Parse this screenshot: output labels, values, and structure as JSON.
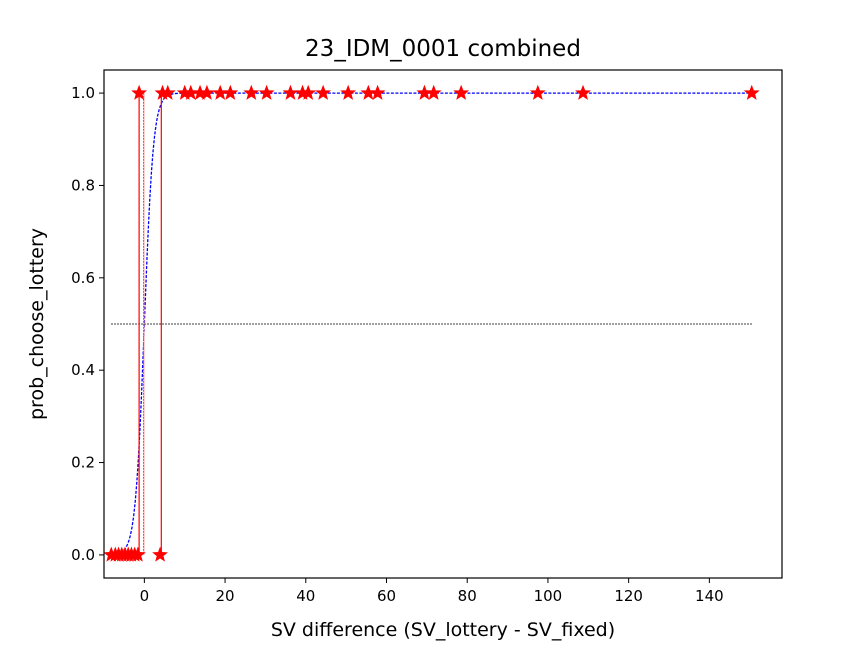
{
  "chart_data": {
    "type": "scatter",
    "title": "23_IDM_0001 combined",
    "xlabel": "SV difference (SV_lottery - SV_fixed)",
    "ylabel": "prob_choose_lottery",
    "xlim": [
      -10,
      158
    ],
    "ylim": [
      -0.05,
      1.05
    ],
    "xticks": [
      0,
      20,
      40,
      60,
      80,
      100,
      120,
      140
    ],
    "yticks": [
      0.0,
      0.2,
      0.4,
      0.6,
      0.8,
      1.0
    ],
    "xtick_labels": [
      "0",
      "20",
      "40",
      "60",
      "80",
      "100",
      "120",
      "140"
    ],
    "ytick_labels": [
      "0.0",
      "0.2",
      "0.4",
      "0.6",
      "0.8",
      "1.0"
    ],
    "grid": false,
    "series": [
      {
        "kind": "observed",
        "marker": "star",
        "color": "#ff0000",
        "points": [
          {
            "x": -8.2,
            "y": 0
          },
          {
            "x": -7.2,
            "y": 0
          },
          {
            "x": -6.4,
            "y": 0
          },
          {
            "x": -5.6,
            "y": 0
          },
          {
            "x": -4.8,
            "y": 0
          },
          {
            "x": -4.0,
            "y": 0
          },
          {
            "x": -3.2,
            "y": 0
          },
          {
            "x": -2.4,
            "y": 0
          },
          {
            "x": -1.6,
            "y": 0
          },
          {
            "x": -1.3,
            "y": 1
          },
          {
            "x": 3.9,
            "y": 0
          },
          {
            "x": 4.5,
            "y": 1
          },
          {
            "x": 5.8,
            "y": 1
          },
          {
            "x": 10.0,
            "y": 1
          },
          {
            "x": 11.5,
            "y": 1
          },
          {
            "x": 13.8,
            "y": 1
          },
          {
            "x": 15.5,
            "y": 1
          },
          {
            "x": 18.8,
            "y": 1
          },
          {
            "x": 21.3,
            "y": 1
          },
          {
            "x": 26.5,
            "y": 1
          },
          {
            "x": 30.3,
            "y": 1
          },
          {
            "x": 36.2,
            "y": 1
          },
          {
            "x": 39.2,
            "y": 1
          },
          {
            "x": 40.6,
            "y": 1
          },
          {
            "x": 44.3,
            "y": 1
          },
          {
            "x": 50.5,
            "y": 1
          },
          {
            "x": 55.5,
            "y": 1
          },
          {
            "x": 57.8,
            "y": 1
          },
          {
            "x": 69.4,
            "y": 1
          },
          {
            "x": 71.7,
            "y": 1
          },
          {
            "x": 78.5,
            "y": 1
          },
          {
            "x": 97.5,
            "y": 1
          },
          {
            "x": 108.7,
            "y": 1
          },
          {
            "x": 150.5,
            "y": 1
          }
        ]
      },
      {
        "kind": "fit",
        "line_style": "dashed",
        "color": "#0000ff",
        "curve": "logistic",
        "x_range": [
          -8.2,
          150.5
        ]
      },
      {
        "kind": "jump-lines",
        "color": "#ff0000",
        "segments": [
          {
            "x": -1.3,
            "y": [
              0,
              1
            ]
          },
          {
            "x": 4.2,
            "y": [
              0,
              1
            ]
          }
        ]
      },
      {
        "kind": "reference",
        "line_style": "dotted",
        "color": "#000000",
        "horizontal_y": 0.5,
        "horizontal_x_range": [
          -8.2,
          150.5
        ],
        "vertical_x": -0.2
      }
    ],
    "legend": "none"
  }
}
